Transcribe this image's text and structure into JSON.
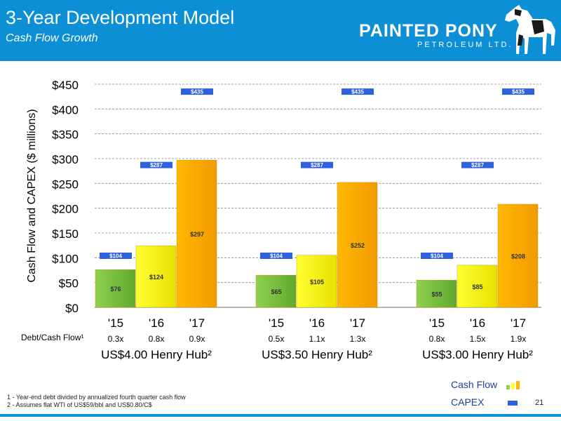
{
  "header": {
    "title": "3-Year Development Model",
    "subtitle": "Cash Flow Growth",
    "logo_main": "PAINTED PONY",
    "logo_sub": "PETROLEUM LTD."
  },
  "colors": {
    "header_blue": "#0d8fd6",
    "capex_blue": "#2f60de",
    "bar_green": "#8fd14f",
    "bar_yellow": "#ffff33",
    "bar_orange": "#ffb800"
  },
  "chart_data": {
    "type": "bar",
    "ylabel": "Cash Flow and CAPEX ($ millions)",
    "ylim": [
      0,
      450
    ],
    "yticks": [
      0,
      50,
      100,
      150,
      200,
      250,
      300,
      350,
      400,
      450
    ],
    "ytick_labels": [
      "$0",
      "$50",
      "$100",
      "$150",
      "$200",
      "$250",
      "$300",
      "$350",
      "$400",
      "$450"
    ],
    "grid": true,
    "ratio_label": "Debt/Cash Flow¹",
    "groups": [
      {
        "name": "US$4.00 Henry Hub²",
        "categories": [
          "'15",
          "'16",
          "'17"
        ],
        "cash_flow": [
          76,
          124,
          297
        ],
        "cash_flow_labels": [
          "$76",
          "$124",
          "$297"
        ],
        "capex": [
          104,
          287,
          435
        ],
        "capex_labels": [
          "$104",
          "$287",
          "$435"
        ],
        "debt_cash_flow": [
          "0.3x",
          "0.8x",
          "0.9x"
        ]
      },
      {
        "name": "US$3.50 Henry Hub²",
        "categories": [
          "'15",
          "'16",
          "'17"
        ],
        "cash_flow": [
          65,
          105,
          252
        ],
        "cash_flow_labels": [
          "$65",
          "$105",
          "$252"
        ],
        "capex": [
          104,
          287,
          435
        ],
        "capex_labels": [
          "$104",
          "$287",
          "$435"
        ],
        "debt_cash_flow": [
          "0.5x",
          "1.1x",
          "1.3x"
        ]
      },
      {
        "name": "US$3.00 Henry Hub²",
        "categories": [
          "'15",
          "'16",
          "'17"
        ],
        "cash_flow": [
          55,
          85,
          208
        ],
        "cash_flow_labels": [
          "$55",
          "$85",
          "$208"
        ],
        "capex": [
          104,
          287,
          435
        ],
        "capex_labels": [
          "$104",
          "$287",
          "$435"
        ],
        "debt_cash_flow": [
          "0.8x",
          "1.5x",
          "1.9x"
        ]
      }
    ],
    "legend": [
      "Cash Flow",
      "CAPEX"
    ],
    "legend_position": "bottom-right"
  },
  "footnotes": [
    "1 - Year-end debt divided by annualized fourth quarter cash flow",
    "2 - Assumes flat WTI of US$59/bbl and US$0.80/C$"
  ],
  "legend": {
    "cash_flow": "Cash Flow",
    "capex": "CAPEX"
  },
  "page_number": "21"
}
